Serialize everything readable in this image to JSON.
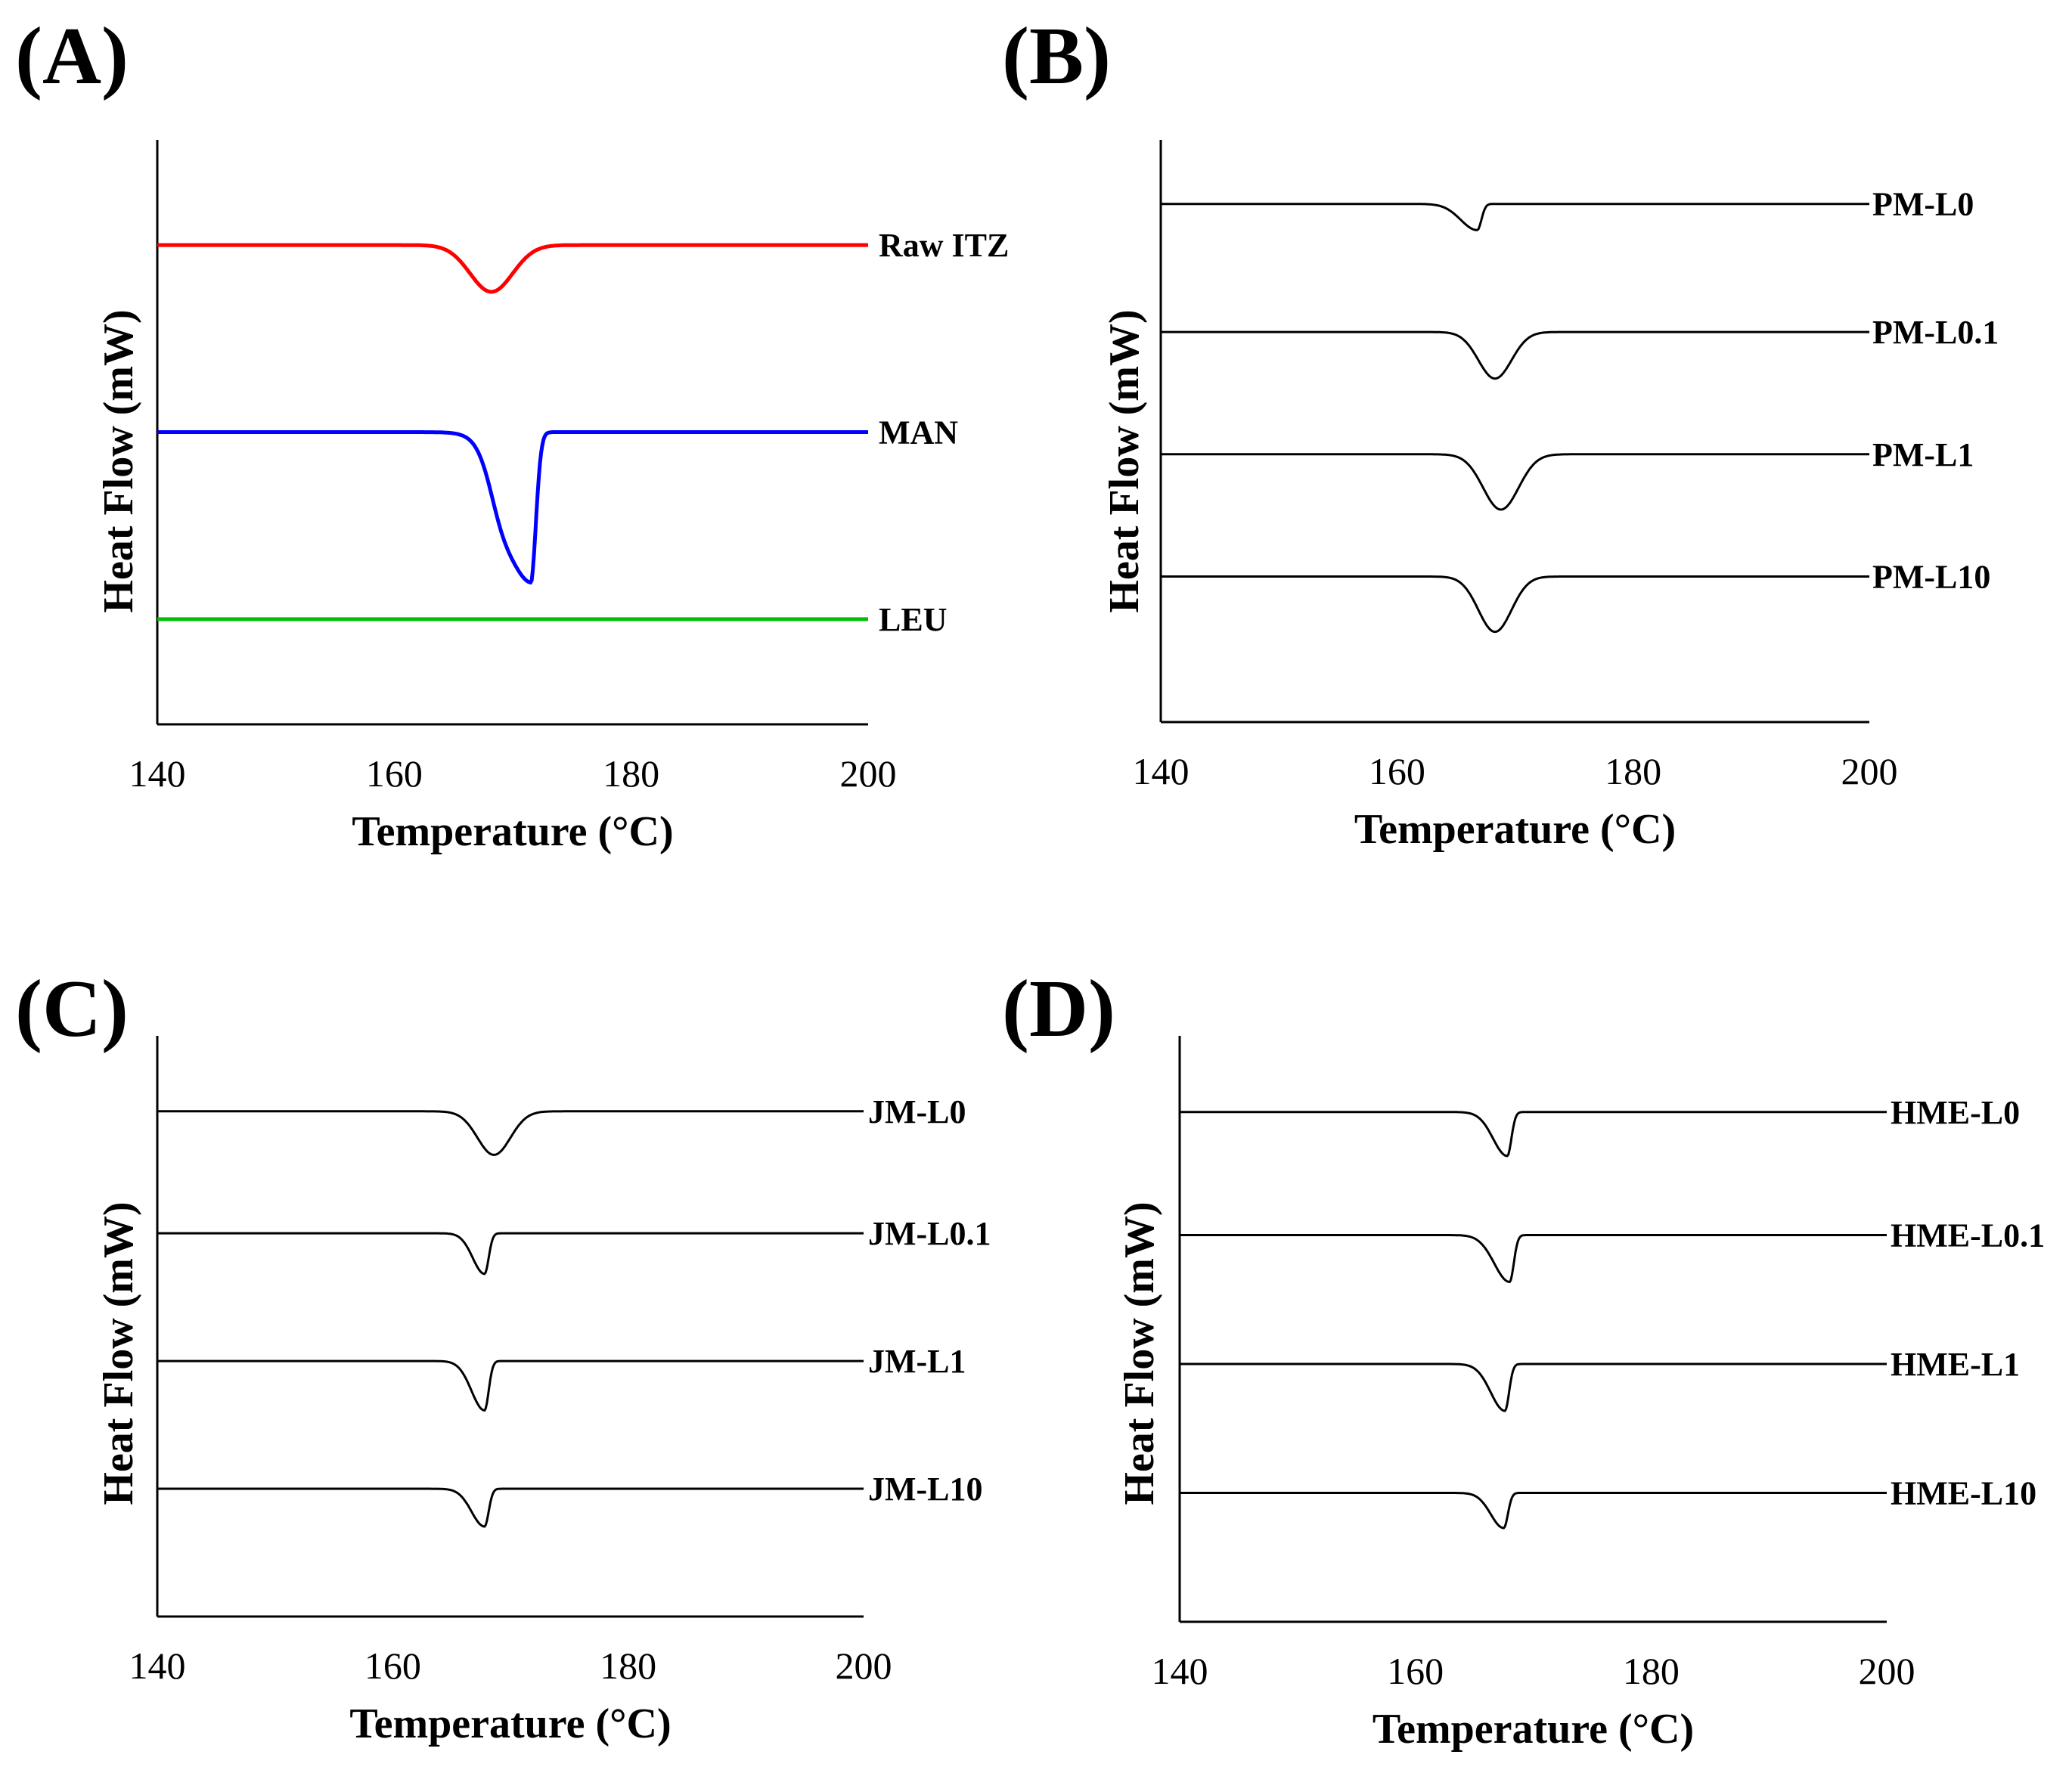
{
  "colors": {
    "axis": "#000000",
    "red": "#ff0000",
    "blue": "#0000ff",
    "green": "#00c000",
    "black": "#000000"
  },
  "chart_data": [
    {
      "panel_label": "(A)",
      "type": "line",
      "xlabel": "Temperature (°C)",
      "ylabel": "Heat Flow (mW)",
      "xlim": [
        140,
        200
      ],
      "xticks": [
        "140",
        "160",
        "180",
        "200"
      ],
      "series": [
        {
          "name": "Raw ITZ",
          "color": "#ff0000",
          "baseline": 8.2,
          "dip_center": 168.2,
          "depth": 0.8,
          "width": 1.8
        },
        {
          "name": "MAN",
          "color": "#0000ff",
          "baseline": 5.0,
          "dip_center": 171.5,
          "depth": 2.6,
          "width": 2.0,
          "shape": "broad"
        },
        {
          "name": "LEU",
          "color": "#00c000",
          "baseline": 1.8,
          "dip_center": 170,
          "depth": 0,
          "width": 1.0
        }
      ]
    },
    {
      "panel_label": "(B)",
      "type": "line",
      "xlabel": "Temperature (°C)",
      "ylabel": "Heat Flow (mW)",
      "xlim": [
        140,
        200
      ],
      "xticks": [
        "140",
        "160",
        "180",
        "200"
      ],
      "series": [
        {
          "name": "PM-L0",
          "color": "#000000",
          "baseline": 8.9,
          "dip_center": 166.8,
          "depth": 0.45,
          "width": 1.4,
          "shape": "sharp"
        },
        {
          "name": "PM-L0.1",
          "color": "#000000",
          "baseline": 6.7,
          "dip_center": 168.3,
          "depth": 0.8,
          "width": 1.4
        },
        {
          "name": "PM-L1",
          "color": "#000000",
          "baseline": 4.6,
          "dip_center": 168.8,
          "depth": 0.95,
          "width": 1.5
        },
        {
          "name": "PM-L10",
          "color": "#000000",
          "baseline": 2.5,
          "dip_center": 168.3,
          "depth": 0.95,
          "width": 1.4
        }
      ]
    },
    {
      "panel_label": "(C)",
      "type": "line",
      "xlabel": "Temperature (°C)",
      "ylabel": "Heat Flow (mW)",
      "xlim": [
        140,
        200
      ],
      "xticks": [
        "140",
        "160",
        "180",
        "200"
      ],
      "series": [
        {
          "name": "JM-L0",
          "color": "#000000",
          "baseline": 8.7,
          "dip_center": 168.6,
          "depth": 0.75,
          "width": 1.4
        },
        {
          "name": "JM-L0.1",
          "color": "#000000",
          "baseline": 6.6,
          "dip_center": 167.8,
          "depth": 0.7,
          "width": 1.0,
          "shape": "sharp"
        },
        {
          "name": "JM-L1",
          "color": "#000000",
          "baseline": 4.4,
          "dip_center": 167.8,
          "depth": 0.85,
          "width": 1.1,
          "shape": "sharp"
        },
        {
          "name": "JM-L10",
          "color": "#000000",
          "baseline": 2.2,
          "dip_center": 167.8,
          "depth": 0.65,
          "width": 1.1,
          "shape": "sharp"
        }
      ]
    },
    {
      "panel_label": "(D)",
      "type": "line",
      "xlabel": "Temperature (°C)",
      "ylabel": "Heat Flow (mW)",
      "xlim": [
        140,
        200
      ],
      "xticks": [
        "140",
        "160",
        "180",
        "200"
      ],
      "series": [
        {
          "name": "HME-L0",
          "color": "#000000",
          "baseline": 8.7,
          "dip_center": 167.8,
          "depth": 0.75,
          "width": 1.2,
          "shape": "sharp"
        },
        {
          "name": "HME-L0.1",
          "color": "#000000",
          "baseline": 6.6,
          "dip_center": 168.0,
          "depth": 0.8,
          "width": 1.3,
          "shape": "sharp"
        },
        {
          "name": "HME-L1",
          "color": "#000000",
          "baseline": 4.4,
          "dip_center": 167.6,
          "depth": 0.8,
          "width": 1.2,
          "shape": "sharp"
        },
        {
          "name": "HME-L10",
          "color": "#000000",
          "baseline": 2.2,
          "dip_center": 167.5,
          "depth": 0.6,
          "width": 1.1,
          "shape": "sharp"
        }
      ]
    }
  ]
}
